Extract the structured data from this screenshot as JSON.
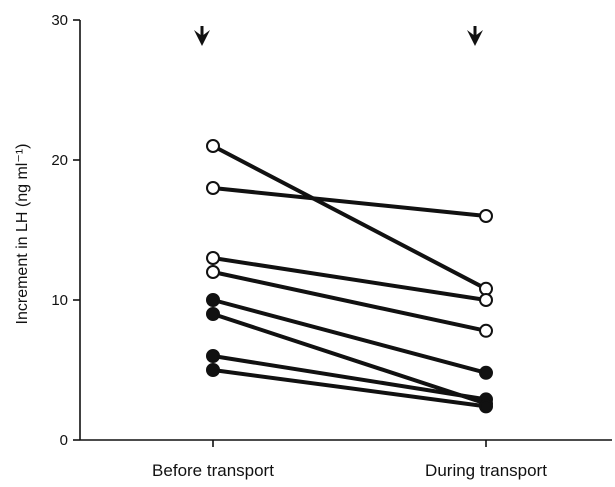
{
  "chart_data": {
    "type": "line",
    "title": "",
    "ylabel": "Increment in LH (ng ml⁻¹)",
    "xlabel": "",
    "categories": [
      "Before transport",
      "During transport"
    ],
    "ylim": [
      0,
      30
    ],
    "yticks": [
      0,
      10,
      20,
      30
    ],
    "grid": false,
    "markers_above_categories": "arrow",
    "series": [
      {
        "marker": "open",
        "values": [
          21,
          10.8
        ]
      },
      {
        "marker": "open",
        "values": [
          18,
          16
        ]
      },
      {
        "marker": "open",
        "values": [
          13,
          10
        ]
      },
      {
        "marker": "open",
        "values": [
          12,
          7.8
        ]
      },
      {
        "marker": "filled",
        "values": [
          10,
          4.8
        ]
      },
      {
        "marker": "filled",
        "values": [
          9,
          2.6
        ]
      },
      {
        "marker": "filled",
        "values": [
          6,
          2.9
        ]
      },
      {
        "marker": "filled",
        "values": [
          5,
          2.4
        ]
      }
    ]
  }
}
